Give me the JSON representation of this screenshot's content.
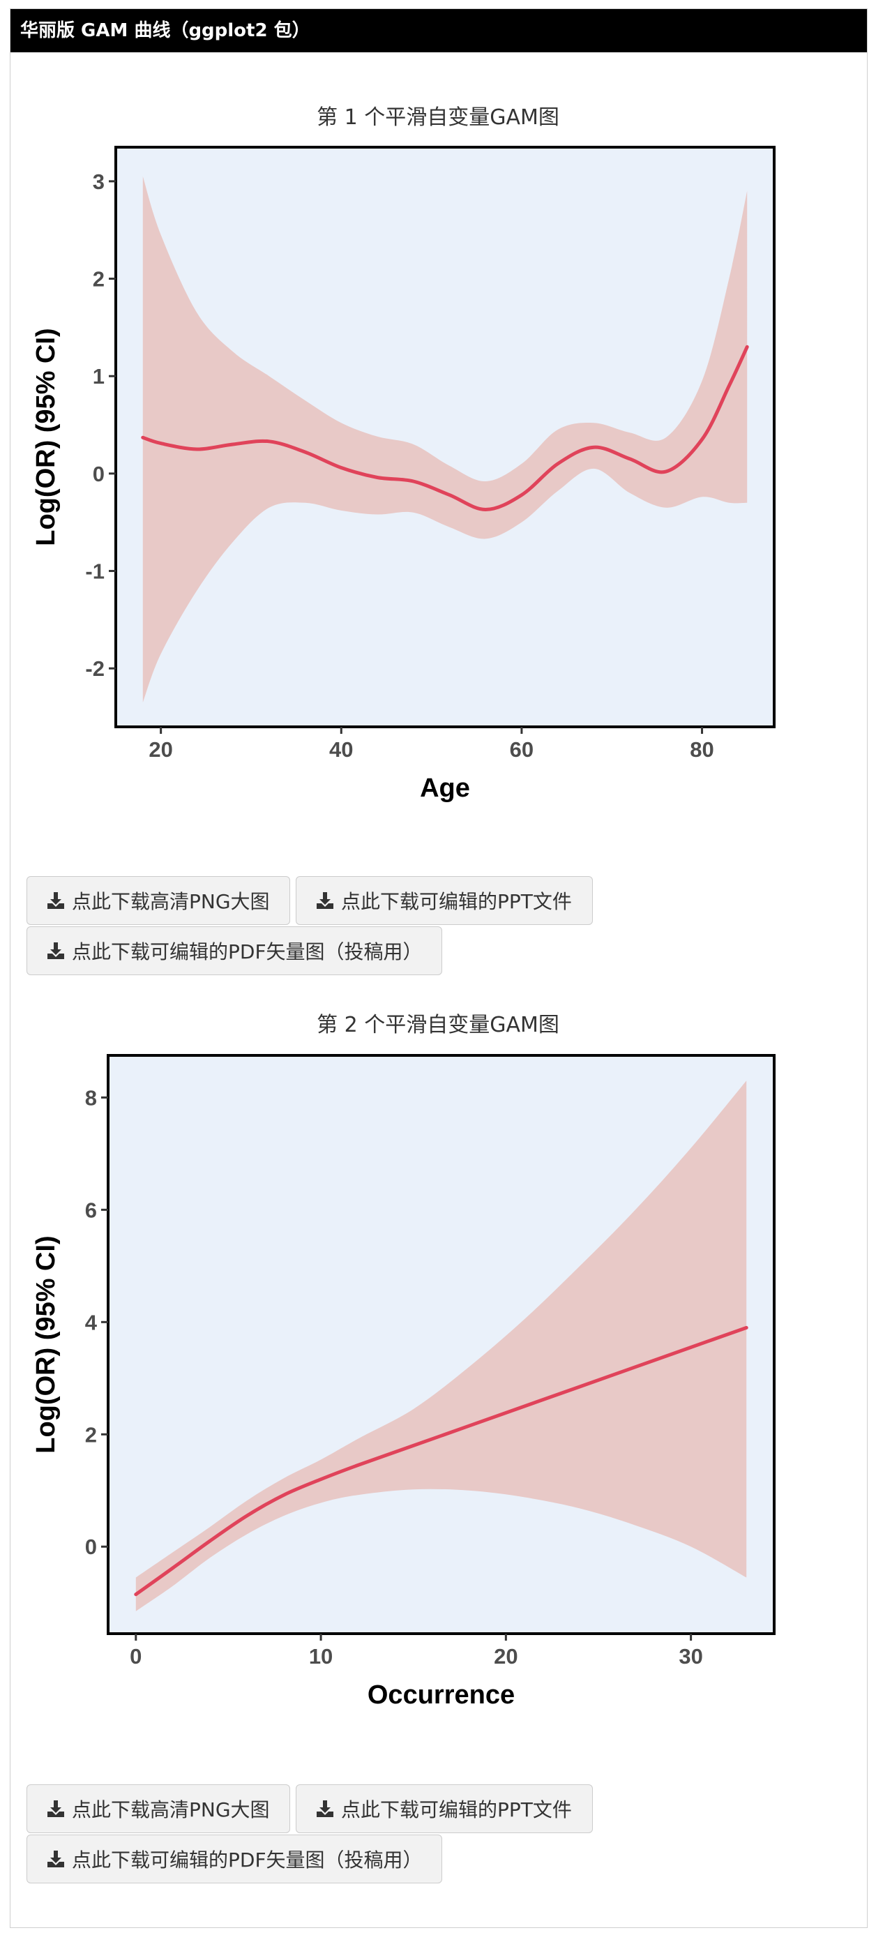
{
  "panel": {
    "title": "华丽版 GAM 曲线（ggplot2 包）"
  },
  "colors": {
    "plot_bg": "#eaf1fa",
    "ribbon": "#e8c9c7",
    "line": "#e0435a",
    "frame": "#000000",
    "header_bg": "#000000"
  },
  "plots": [
    {
      "title": "第 1 个平滑自变量GAM图",
      "buttons": {
        "png": "点此下载高清PNG大图",
        "ppt": "点此下载可编辑的PPT文件",
        "pdf": "点此下载可编辑的PDF矢量图（投稿用）"
      }
    },
    {
      "title": "第 2 个平滑自变量GAM图",
      "buttons": {
        "png": "点此下载高清PNG大图",
        "ppt": "点此下载可编辑的PPT文件",
        "pdf": "点此下载可编辑的PDF矢量图（投稿用）"
      }
    }
  ],
  "chart_data": [
    {
      "type": "line",
      "title": "第 1 个平滑自变量GAM图",
      "xlabel": "Age",
      "ylabel": "Log(OR) (95% CI)",
      "xlim": [
        15,
        88
      ],
      "ylim": [
        -2.6,
        3.35
      ],
      "xticks": [
        20,
        40,
        60,
        80
      ],
      "yticks": [
        -2,
        -1,
        0,
        1,
        2,
        3
      ],
      "grid": false,
      "series": [
        {
          "x": [
            18,
            20,
            24,
            28,
            32,
            36,
            40,
            44,
            48,
            52,
            56,
            60,
            64,
            68,
            72,
            76,
            80,
            83,
            85
          ],
          "y": [
            0.37,
            0.31,
            0.25,
            0.3,
            0.33,
            0.22,
            0.06,
            -0.04,
            -0.08,
            -0.22,
            -0.37,
            -0.22,
            0.1,
            0.27,
            0.15,
            0.02,
            0.35,
            0.9,
            1.3
          ],
          "lower": [
            -2.35,
            -1.85,
            -1.2,
            -0.7,
            -0.35,
            -0.3,
            -0.38,
            -0.42,
            -0.4,
            -0.55,
            -0.67,
            -0.5,
            -0.18,
            0.05,
            -0.2,
            -0.35,
            -0.24,
            -0.3,
            -0.3
          ],
          "upper": [
            3.05,
            2.45,
            1.65,
            1.25,
            1.0,
            0.75,
            0.52,
            0.38,
            0.3,
            0.08,
            -0.08,
            0.1,
            0.45,
            0.52,
            0.42,
            0.37,
            0.95,
            2.0,
            2.9
          ]
        }
      ]
    },
    {
      "type": "line",
      "title": "第 2 个平滑自变量GAM图",
      "xlabel": "Occurrence",
      "ylabel": "Log(OR) (95% CI)",
      "xlim": [
        -1.5,
        34.5
      ],
      "ylim": [
        -1.55,
        8.75
      ],
      "xticks": [
        0,
        10,
        20,
        30
      ],
      "yticks": [
        0,
        2,
        4,
        6,
        8
      ],
      "grid": false,
      "series": [
        {
          "x": [
            0,
            2,
            4,
            6,
            8,
            10,
            12,
            15,
            18,
            21,
            24,
            27,
            30,
            33
          ],
          "y": [
            -0.85,
            -0.38,
            0.1,
            0.55,
            0.92,
            1.2,
            1.45,
            1.8,
            2.15,
            2.5,
            2.85,
            3.2,
            3.55,
            3.9
          ],
          "lower": [
            -1.15,
            -0.7,
            -0.2,
            0.22,
            0.55,
            0.78,
            0.92,
            1.02,
            1.0,
            0.88,
            0.68,
            0.38,
            0.0,
            -0.55
          ],
          "upper": [
            -0.55,
            -0.1,
            0.35,
            0.82,
            1.22,
            1.55,
            1.92,
            2.45,
            3.2,
            4.05,
            5.0,
            6.0,
            7.1,
            8.3
          ]
        }
      ]
    }
  ]
}
